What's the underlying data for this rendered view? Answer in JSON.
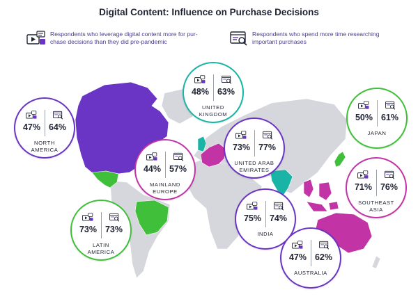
{
  "title": "Digital Content: Influence on Purchase Decisions",
  "legend": {
    "metric_1": {
      "icon": "video-content-icon",
      "text_line1": "Respondents who leverage digital content more for pur-",
      "text_line2": "chase decisions than they did pre-pandemic"
    },
    "metric_2": {
      "icon": "browser-search-icon",
      "text_line1": "Respondents who spend more time researching",
      "text_line2": "important purchases"
    }
  },
  "colors": {
    "purple": "#6a34c4",
    "teal": "#19b4a6",
    "magenta": "#c233a6",
    "green": "#3fbf3a",
    "land": "#d5d7dc"
  },
  "regions": [
    {
      "line1": "NORTH",
      "line2": "AMERICA",
      "metric_1": "47%",
      "metric_2": "64%",
      "color": "purple"
    },
    {
      "line1": "UNITED",
      "line2": "KINGDOM",
      "metric_1": "48%",
      "metric_2": "63%",
      "color": "teal"
    },
    {
      "line1": "MAINLAND",
      "line2": "EUROPE",
      "metric_1": "44%",
      "metric_2": "57%",
      "color": "magenta"
    },
    {
      "line1": "UNITED ARAB",
      "line2": "EMIRATES",
      "metric_1": "73%",
      "metric_2": "77%",
      "color": "purple"
    },
    {
      "line1": "JAPAN",
      "line2": "",
      "metric_1": "50%",
      "metric_2": "61%",
      "color": "green"
    },
    {
      "line1": "SOUTHEAST",
      "line2": "ASIA",
      "metric_1": "71%",
      "metric_2": "76%",
      "color": "magenta"
    },
    {
      "line1": "LATIN",
      "line2": "AMERICA",
      "metric_1": "73%",
      "metric_2": "73%",
      "color": "green"
    },
    {
      "line1": "INDIA",
      "line2": "",
      "metric_1": "75%",
      "metric_2": "74%",
      "color": "purple"
    },
    {
      "line1": "AUSTRALIA",
      "line2": "",
      "metric_1": "47%",
      "metric_2": "62%",
      "color": "purple"
    }
  ]
}
